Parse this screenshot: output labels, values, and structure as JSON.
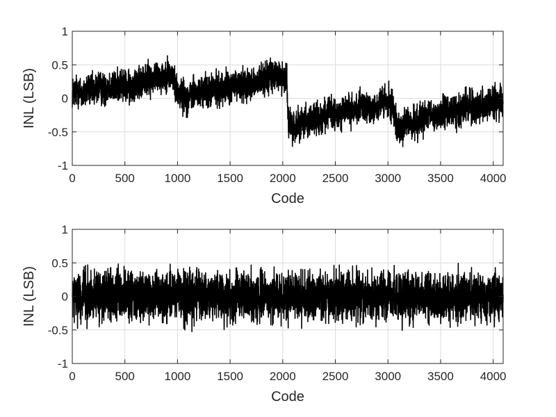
{
  "chart_data": [
    {
      "type": "line",
      "xlabel": "Code",
      "ylabel": "INL (LSB)",
      "xlim": [
        0,
        4095
      ],
      "ylim": [
        -1,
        1
      ],
      "grid": true,
      "line_color": "#000000",
      "x_ticks": [
        0,
        500,
        1000,
        1500,
        2000,
        2500,
        3000,
        3500,
        4000
      ],
      "x_tick_labels": [
        "0",
        "500",
        "1000",
        "1500",
        "2000",
        "2500",
        "3000",
        "3500",
        "4000"
      ],
      "y_ticks": [
        -1,
        -0.5,
        0,
        0.5,
        1
      ],
      "y_tick_labels": [
        "-1",
        "-0.5",
        "0",
        "0.5",
        "1"
      ],
      "series": [
        {
          "x": [
            0,
            50,
            100,
            150,
            200,
            250,
            300,
            350,
            400,
            450,
            500,
            550,
            600,
            650,
            700,
            750,
            800,
            850,
            900,
            950,
            1000,
            1050,
            1100,
            1150,
            1200,
            1250,
            1300,
            1350,
            1400,
            1450,
            1500,
            1550,
            1600,
            1650,
            1700,
            1750,
            1800,
            1850,
            1900,
            1950,
            2000,
            2040,
            2050,
            2100,
            2150,
            2200,
            2250,
            2300,
            2350,
            2400,
            2450,
            2500,
            2550,
            2600,
            2650,
            2700,
            2750,
            2800,
            2850,
            2900,
            2950,
            3000,
            3050,
            3100,
            3150,
            3200,
            3250,
            3300,
            3350,
            3400,
            3450,
            3500,
            3550,
            3600,
            3650,
            3700,
            3750,
            3800,
            3850,
            3900,
            3950,
            4000,
            4050,
            4095
          ],
          "y": [
            0.08,
            0.12,
            0.05,
            0.15,
            0.1,
            0.18,
            0.12,
            0.2,
            0.15,
            0.22,
            0.18,
            0.15,
            0.25,
            0.2,
            0.3,
            0.28,
            0.35,
            0.3,
            0.38,
            0.32,
            0.1,
            0.05,
            0.0,
            0.08,
            0.05,
            0.12,
            0.1,
            0.15,
            0.12,
            0.18,
            0.15,
            0.2,
            0.18,
            0.22,
            0.25,
            0.2,
            0.28,
            0.3,
            0.32,
            0.35,
            0.3,
            0.35,
            -0.35,
            -0.45,
            -0.38,
            -0.32,
            -0.35,
            -0.28,
            -0.3,
            -0.25,
            -0.2,
            -0.28,
            -0.22,
            -0.18,
            -0.2,
            -0.15,
            -0.12,
            -0.18,
            -0.1,
            -0.15,
            -0.05,
            -0.08,
            -0.12,
            -0.48,
            -0.4,
            -0.35,
            -0.38,
            -0.3,
            -0.32,
            -0.25,
            -0.28,
            -0.22,
            -0.2,
            -0.18,
            -0.2,
            -0.15,
            -0.12,
            -0.1,
            -0.15,
            -0.08,
            -0.1,
            -0.05,
            -0.08,
            -0.05
          ],
          "noise_amplitude": 0.28
        }
      ]
    },
    {
      "type": "line",
      "xlabel": "Code",
      "ylabel": "INL (LSB)",
      "xlim": [
        0,
        4095
      ],
      "ylim": [
        -1,
        1
      ],
      "grid": true,
      "line_color": "#000000",
      "x_ticks": [
        0,
        500,
        1000,
        1500,
        2000,
        2500,
        3000,
        3500,
        4000
      ],
      "x_tick_labels": [
        "0",
        "500",
        "1000",
        "1500",
        "2000",
        "2500",
        "3000",
        "3500",
        "4000"
      ],
      "y_ticks": [
        -1,
        -0.5,
        0,
        0.5,
        1
      ],
      "y_tick_labels": [
        "-1",
        "-0.5",
        "0",
        "0.5",
        "1"
      ],
      "series": [
        {
          "x": [
            0,
            4095
          ],
          "y": [
            0,
            0
          ],
          "noise_amplitude": 0.42
        }
      ]
    }
  ]
}
